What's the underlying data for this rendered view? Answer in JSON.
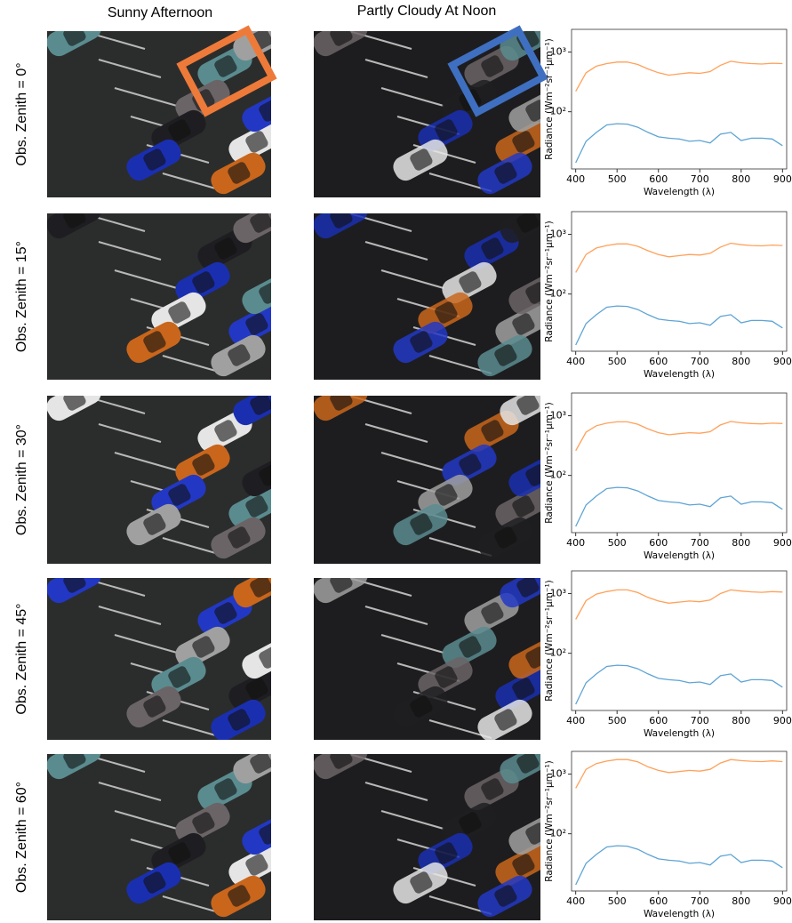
{
  "figure": {
    "column_titles": [
      "Sunny Afternoon",
      "Partly Cloudy At Noon"
    ],
    "row_labels": [
      "Obs. Zenith = 0°",
      "Obs. Zenith = 15°",
      "Obs. Zenith = 30°",
      "Obs. Zenith = 45°",
      "Obs. Zenith = 60°"
    ]
  },
  "chart_data": [
    {
      "type": "line",
      "x_label": "Wavelength (λ)",
      "y_label": "Radiance (Wm⁻²sr⁻¹μm⁻¹)",
      "yscale": "log",
      "x": [
        400,
        425,
        450,
        475,
        500,
        525,
        550,
        575,
        600,
        625,
        650,
        675,
        700,
        725,
        750,
        775,
        800,
        825,
        850,
        875,
        900
      ],
      "series": [
        {
          "color": "#ffa15a",
          "values": [
            220,
            450,
            580,
            640,
            680,
            680,
            620,
            520,
            450,
            410,
            430,
            450,
            440,
            470,
            600,
            700,
            660,
            640,
            630,
            650,
            640
          ]
        },
        {
          "color": "#5ea4d4",
          "values": [
            14,
            32,
            45,
            60,
            63,
            62,
            55,
            45,
            38,
            36,
            35,
            32,
            33,
            30,
            42,
            45,
            33,
            36,
            36,
            35,
            27
          ]
        }
      ],
      "xlim": [
        390,
        910
      ],
      "ylim": [
        11,
        2400
      ],
      "xticks": [
        400,
        500,
        600,
        700,
        800,
        900
      ],
      "yticks": [
        {
          "value": 100,
          "label": "10²"
        },
        {
          "value": 1000,
          "label": "10³"
        }
      ]
    },
    {
      "type": "line",
      "x_label": "Wavelength (λ)",
      "y_label": "Radiance (Wm⁻²sr⁻¹μm⁻¹)",
      "yscale": "log",
      "x": [
        400,
        425,
        450,
        475,
        500,
        525,
        550,
        575,
        600,
        625,
        650,
        675,
        700,
        725,
        750,
        775,
        800,
        825,
        850,
        875,
        900
      ],
      "series": [
        {
          "color": "#ffa15a",
          "values": [
            230,
            460,
            590,
            650,
            690,
            690,
            630,
            530,
            460,
            420,
            440,
            460,
            450,
            480,
            610,
            710,
            670,
            650,
            640,
            660,
            650
          ]
        },
        {
          "color": "#5ea4d4",
          "values": [
            14,
            32,
            45,
            60,
            63,
            62,
            55,
            45,
            38,
            36,
            35,
            32,
            33,
            30,
            42,
            45,
            33,
            36,
            36,
            35,
            27
          ]
        }
      ],
      "xlim": [
        390,
        910
      ],
      "ylim": [
        11,
        2400
      ],
      "xticks": [
        400,
        500,
        600,
        700,
        800,
        900
      ],
      "yticks": [
        {
          "value": 100,
          "label": "10²"
        },
        {
          "value": 1000,
          "label": "10³"
        }
      ]
    },
    {
      "type": "line",
      "x_label": "Wavelength (λ)",
      "y_label": "Radiance (Wm⁻²sr⁻¹μm⁻¹)",
      "yscale": "log",
      "x": [
        400,
        425,
        450,
        475,
        500,
        525,
        550,
        575,
        600,
        625,
        650,
        675,
        700,
        725,
        750,
        775,
        800,
        825,
        850,
        875,
        900
      ],
      "series": [
        {
          "color": "#ffa15a",
          "values": [
            260,
            530,
            680,
            750,
            790,
            790,
            720,
            600,
            520,
            480,
            500,
            520,
            510,
            540,
            700,
            800,
            760,
            740,
            730,
            750,
            740
          ]
        },
        {
          "color": "#5ea4d4",
          "values": [
            14,
            32,
            45,
            60,
            63,
            62,
            55,
            45,
            38,
            36,
            35,
            32,
            33,
            30,
            42,
            45,
            33,
            36,
            36,
            35,
            27
          ]
        }
      ],
      "xlim": [
        390,
        910
      ],
      "ylim": [
        11,
        2400
      ],
      "xticks": [
        400,
        500,
        600,
        700,
        800,
        900
      ],
      "yticks": [
        {
          "value": 100,
          "label": "10²"
        },
        {
          "value": 1000,
          "label": "10³"
        }
      ]
    },
    {
      "type": "line",
      "x_label": "Wavelength (λ)",
      "y_label": "Radiance (Wm⁻²sr⁻¹μm⁻¹)",
      "yscale": "log",
      "x": [
        400,
        425,
        450,
        475,
        500,
        525,
        550,
        575,
        600,
        625,
        650,
        675,
        700,
        725,
        750,
        775,
        800,
        825,
        850,
        875,
        900
      ],
      "series": [
        {
          "color": "#ffa15a",
          "values": [
            370,
            760,
            980,
            1080,
            1150,
            1150,
            1040,
            860,
            750,
            690,
            720,
            750,
            730,
            780,
            1000,
            1150,
            1100,
            1070,
            1050,
            1080,
            1060
          ]
        },
        {
          "color": "#5ea4d4",
          "values": [
            14,
            32,
            45,
            60,
            63,
            62,
            55,
            45,
            38,
            36,
            35,
            32,
            33,
            30,
            42,
            45,
            33,
            36,
            36,
            35,
            27
          ]
        }
      ],
      "xlim": [
        390,
        910
      ],
      "ylim": [
        11,
        2400
      ],
      "xticks": [
        400,
        500,
        600,
        700,
        800,
        900
      ],
      "yticks": [
        {
          "value": 100,
          "label": "10²"
        },
        {
          "value": 1000,
          "label": "10³"
        }
      ]
    },
    {
      "type": "line",
      "x_label": "Wavelength (λ)",
      "y_label": "Radiance (Wm⁻²sr⁻¹μm⁻¹)",
      "yscale": "log",
      "x": [
        400,
        425,
        450,
        475,
        500,
        525,
        550,
        575,
        600,
        625,
        650,
        675,
        700,
        725,
        750,
        775,
        800,
        825,
        850,
        875,
        900
      ],
      "series": [
        {
          "color": "#ffa15a",
          "values": [
            580,
            1200,
            1500,
            1650,
            1750,
            1750,
            1600,
            1320,
            1150,
            1060,
            1100,
            1150,
            1120,
            1200,
            1530,
            1750,
            1680,
            1640,
            1620,
            1660,
            1620
          ]
        },
        {
          "color": "#5ea4d4",
          "values": [
            14,
            32,
            45,
            60,
            63,
            62,
            55,
            45,
            38,
            36,
            35,
            32,
            33,
            30,
            42,
            45,
            33,
            36,
            36,
            35,
            27
          ]
        }
      ],
      "xlim": [
        390,
        910
      ],
      "ylim": [
        11,
        2400
      ],
      "xticks": [
        400,
        500,
        600,
        700,
        800,
        900
      ],
      "yticks": [
        {
          "value": 100,
          "label": "10²"
        },
        {
          "value": 1000,
          "label": "10³"
        }
      ]
    }
  ]
}
